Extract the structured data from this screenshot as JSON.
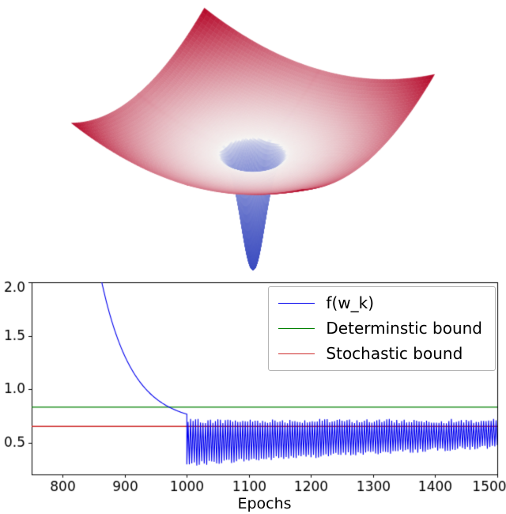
{
  "chart_data": [
    {
      "type": "surface",
      "name": "loss-surface-3d",
      "description": "3D bowl-shaped loss landscape with a narrow deep funnel descending to the global minimum at the center; warm red at high loss, white near the rim of the minimum, blue inside the funnel",
      "colormap": "coolwarm",
      "colors": {
        "low": "#3b4cc0",
        "mid": "#f6f6f4",
        "high": "#b40426"
      },
      "background": "#ffffff",
      "axes_visible": false,
      "view": {
        "azimuth_deg": 60,
        "elevation_deg": 30,
        "z_scale": 0.55
      },
      "surface_function": "z = 0.45*(x^2 + y^2) - 1.8*exp(-(x^2 + y^2)/0.015)",
      "params": {
        "bowl_coeff": 0.45,
        "spike_amplitude": 1.8,
        "spike_width": 0.015,
        "domain_min": -1,
        "domain_max": 1,
        "grid_n": 110
      }
    },
    {
      "type": "line",
      "name": "convergence-plot",
      "xlabel": "Epochs",
      "ylabel": "",
      "xlim": [
        750,
        1500
      ],
      "ylim": [
        0.2,
        2.0
      ],
      "xticks": [
        800,
        900,
        1000,
        1100,
        1200,
        1300,
        1400,
        1500
      ],
      "yticks": [
        2.0,
        1.5,
        1.0,
        0.5
      ],
      "grid": false,
      "legend_position": "upper right",
      "series": [
        {
          "name": "f(w_k)",
          "color": "#0000ee",
          "style": "curve",
          "model": {
            "phase1_decay": {
              "x_start": 863,
              "x_end": 1000,
              "y_at_start": 2.0,
              "asymptote": 0.68,
              "amplitude": 1.32,
              "tau_epochs": 50
            },
            "phase1_keypoints": [
              [
                863,
                2.0
              ],
              [
                900,
                1.31
              ],
              [
                940,
                0.96
              ],
              [
                970,
                0.84
              ],
              [
                1000,
                0.77
              ]
            ],
            "phase2_oscillation": {
              "x_start": 1000,
              "x_end": 1500,
              "top_level": 0.7,
              "bottom_start": 0.29,
              "bottom_end": 0.46,
              "half_period_epochs": 2,
              "noise_amp": 0.02,
              "seed": 7
            }
          }
        },
        {
          "name": "Determinstic bound",
          "color": "#008000",
          "style": "hline",
          "value": 0.83
        },
        {
          "name": "Stochastic bound",
          "color": "#cd2a2a",
          "style": "hline",
          "value": 0.65
        }
      ],
      "legend": {
        "entries": [
          {
            "label": "f(w_k)",
            "color": "#0000ee",
            "linewidth": 1.8
          },
          {
            "label": "Determinstic bound",
            "color": "#008000",
            "linewidth": 1.2
          },
          {
            "label": "Stochastic bound",
            "color": "#cd2a2a",
            "linewidth": 1.2
          }
        ]
      }
    }
  ]
}
